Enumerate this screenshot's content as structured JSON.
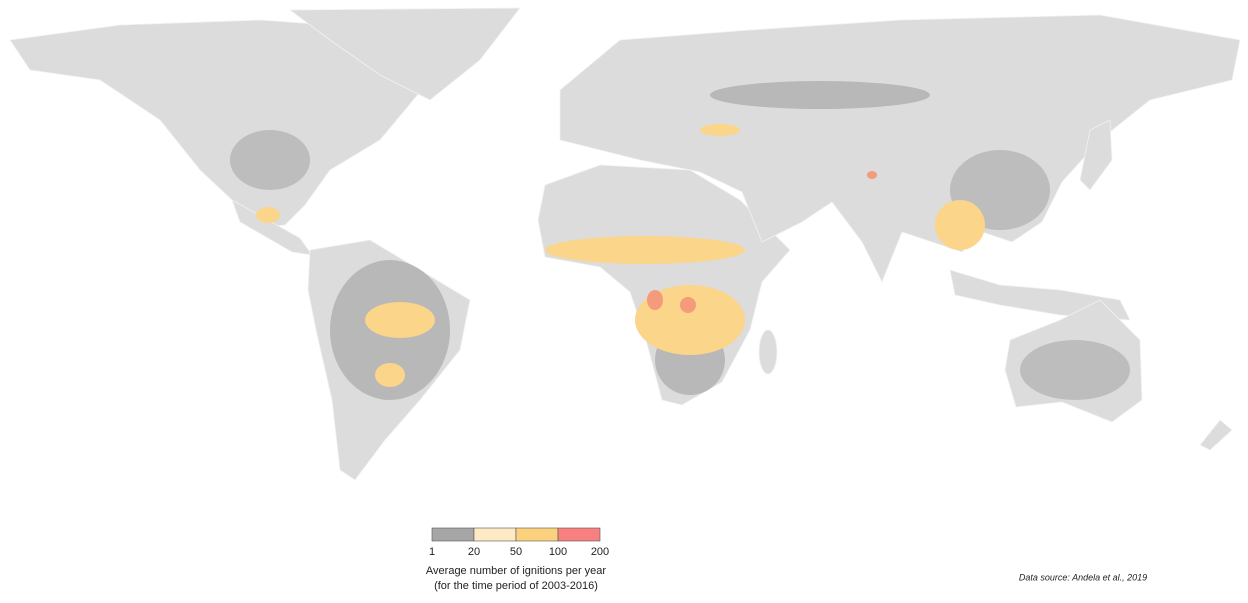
{
  "legend": {
    "ticks": [
      1,
      20,
      50,
      100,
      200
    ],
    "colors": [
      "#a6a6a6",
      "#fde9c4",
      "#fbd17e",
      "#f98080"
    ],
    "title": "Average number of ignitions per year",
    "subtitle": "(for the time period of 2003-2016)"
  },
  "source": "Data source: Andela et al., 2019"
}
